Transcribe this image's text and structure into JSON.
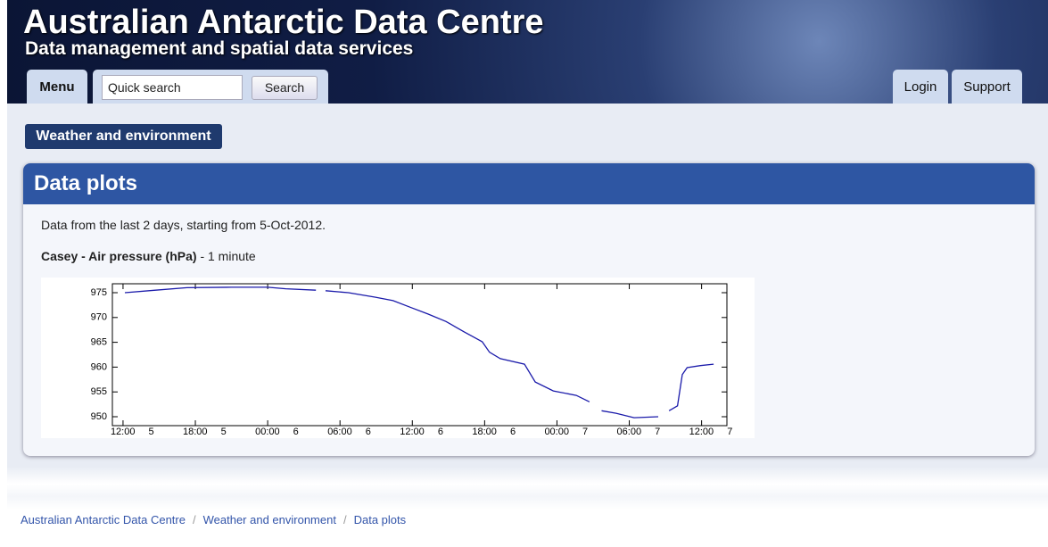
{
  "header": {
    "title": "Australian Antarctic Data Centre",
    "subtitle": "Data management and spatial data services"
  },
  "nav": {
    "menu": "Menu",
    "search_placeholder": "Quick search",
    "search_button": "Search",
    "login": "Login",
    "support": "Support"
  },
  "section_button": "Weather and environment",
  "panel": {
    "title": "Data plots",
    "intro": "Data from the last 2 days, starting from 5-Oct-2012."
  },
  "breadcrumb": [
    "Australian Antarctic Data Centre",
    "Weather and environment",
    "Data plots"
  ],
  "chart_data": {
    "type": "line",
    "title": "Casey - Air pressure (hPa)",
    "subtitle": "- 1 minute",
    "color": "#1a1aaa",
    "x": [
      "2012-10-05 12:09",
      "2012-10-05 14:42",
      "2012-10-05 17:18",
      "2012-10-05 21:00",
      "2012-10-06 00:00",
      "2012-10-06 01:30",
      "2012-10-06 04:00",
      "2012-10-06 04:24",
      "2012-10-06 04:48",
      "2012-10-06 06:42",
      "2012-10-06 08:54",
      "2012-10-06 10:24",
      "2012-10-06 11:54",
      "2012-10-06 13:18",
      "2012-10-06 14:48",
      "2012-10-06 16:18",
      "2012-10-06 17:48",
      "2012-10-06 18:24",
      "2012-10-06 19:18",
      "2012-10-06 21:18",
      "2012-10-06 22:12",
      "2012-10-06 23:42",
      "2012-10-07 01:36",
      "2012-10-07 02:42",
      "2012-10-07 03:12",
      "2012-10-07 03:42",
      "2012-10-07 04:54",
      "2012-10-07 06:24",
      "2012-10-07 08:24",
      "2012-10-07 08:48",
      "2012-10-07 09:18",
      "2012-10-07 10:00",
      "2012-10-07 10:24",
      "2012-10-07 10:48",
      "2012-10-07 11:54",
      "2012-10-07 13:00"
    ],
    "values": [
      975,
      975.5,
      976,
      976.1,
      976.1,
      975.8,
      975.5,
      null,
      975.4,
      975,
      974.1,
      973.4,
      972,
      970.7,
      969.2,
      967.1,
      965.1,
      963,
      961.7,
      960.6,
      957,
      955.2,
      954.3,
      953,
      null,
      951.2,
      950.7,
      949.8,
      950,
      null,
      951.2,
      952.2,
      958.5,
      959.9,
      960.3,
      960.6
    ],
    "xlim": [
      "2012-10-05 11:07",
      "2012-10-07 14:06"
    ],
    "xticks": [
      {
        "value": "2012-10-05 12:00",
        "label": "12:00 5"
      },
      {
        "value": "2012-10-05 18:00",
        "label": "18:00 5"
      },
      {
        "value": "2012-10-06 00:00",
        "label": "00:00 6"
      },
      {
        "value": "2012-10-06 06:00",
        "label": "06:00 6"
      },
      {
        "value": "2012-10-06 12:00",
        "label": "12:00 6"
      },
      {
        "value": "2012-10-06 18:00",
        "label": "18:00 6"
      },
      {
        "value": "2012-10-07 00:00",
        "label": "00:00 7"
      },
      {
        "value": "2012-10-07 06:00",
        "label": "06:00 7"
      },
      {
        "value": "2012-10-07 12:00",
        "label": "12:00 7"
      }
    ],
    "ylim": [
      948.2,
      976.8
    ],
    "yticks": [
      950,
      955,
      960,
      965,
      970,
      975
    ],
    "grid": false
  }
}
